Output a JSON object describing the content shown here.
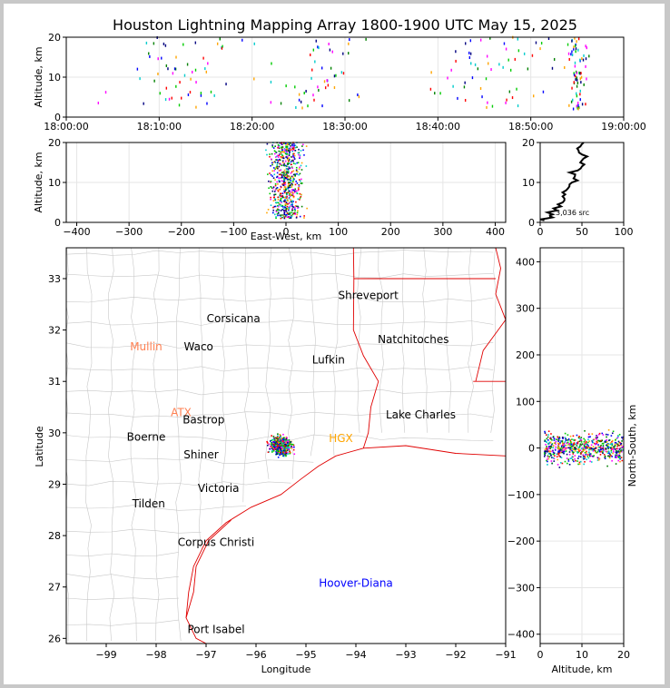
{
  "title": "Houston Lightning Mapping Array 1800-1900 UTC May 15, 2025",
  "colors": {
    "background": "#ffffff",
    "border": "#c8c8c8",
    "county_lines": "#c8c8c8",
    "state_lines": "#e00000",
    "coast": "#e00000",
    "histogram": "#000000",
    "sources": [
      "#0000ff",
      "#00cc00",
      "#ff00ff",
      "#00cccc",
      "#000080",
      "#ffa500",
      "#ff0000",
      "#008000"
    ]
  },
  "chart_data": [
    {
      "id": "time_altitude",
      "type": "scatter",
      "xlabel": "",
      "ylabel": "Altitude, km",
      "x_ticks": [
        "18:00:00",
        "18:10:00",
        "18:20:00",
        "18:30:00",
        "18:40:00",
        "18:50:00",
        "19:00:00"
      ],
      "xlim_minutes_after_1800": [
        0,
        60
      ],
      "ylim": [
        0,
        20
      ],
      "y_ticks": [
        0,
        10,
        20
      ],
      "clusters_minutes_after_1800": [
        {
          "center": 12,
          "spread": 10,
          "count": 60
        },
        {
          "center": 27,
          "spread": 8,
          "count": 50
        },
        {
          "center": 46,
          "spread": 10,
          "count": 60
        },
        {
          "center": 55,
          "spread": 1.5,
          "count": 70
        }
      ],
      "altitude_band_km": [
        2,
        20
      ]
    },
    {
      "id": "east_west_altitude",
      "type": "scatter",
      "xlabel": "East-West, km",
      "ylabel": "Altitude, km",
      "xlim": [
        -420,
        420
      ],
      "x_ticks": [
        -400,
        -300,
        -200,
        -100,
        0,
        100,
        200,
        300,
        400
      ],
      "ylim": [
        0,
        20
      ],
      "y_ticks": [
        0,
        10,
        20
      ],
      "source_cluster": {
        "x_center": 0,
        "x_spread": 30,
        "y_range": [
          1,
          20
        ]
      }
    },
    {
      "id": "altitude_histogram",
      "type": "line",
      "xlim": [
        0,
        100
      ],
      "x_ticks": [
        0,
        50,
        100
      ],
      "ylim": [
        0,
        20
      ],
      "y_ticks": [
        0,
        10,
        20
      ],
      "annotation": "3,036 src",
      "profile_altitude_km": [
        0.5,
        1,
        1.5,
        2,
        3,
        4,
        5,
        6,
        7,
        8,
        9,
        10,
        11,
        12,
        13,
        14,
        15,
        16,
        17,
        18,
        19,
        20
      ],
      "profile_count": [
        5,
        8,
        12,
        15,
        20,
        25,
        27,
        29,
        30,
        31,
        35,
        38,
        40,
        42,
        45,
        50,
        48,
        52,
        50,
        46,
        48,
        52
      ]
    },
    {
      "id": "plan_view",
      "type": "scatter",
      "xlabel": "Longitude",
      "ylabel": "Latitude",
      "xlim": [
        -99.8,
        -91
      ],
      "ylim": [
        25.9,
        33.6
      ],
      "x_ticks": [
        -99,
        -98,
        -97,
        -96,
        -95,
        -94,
        -93,
        -92,
        -91
      ],
      "y_ticks": [
        26,
        27,
        28,
        29,
        30,
        31,
        32,
        33
      ],
      "source_cluster": {
        "lon_center": -95.5,
        "lat_center": 29.75,
        "lon_spread": 0.35,
        "lat_spread": 0.3
      },
      "cities": [
        {
          "name": "Shreveport",
          "lon": -93.75,
          "lat": 32.6,
          "color": "#000000"
        },
        {
          "name": "Corsicana",
          "lon": -96.45,
          "lat": 32.15,
          "color": "#000000"
        },
        {
          "name": "Natchitoches",
          "lon": -92.85,
          "lat": 31.75,
          "color": "#000000"
        },
        {
          "name": "Mullin",
          "lon": -98.2,
          "lat": 31.6,
          "color": "#ff7f50"
        },
        {
          "name": "Waco",
          "lon": -97.15,
          "lat": 31.6,
          "color": "#000000"
        },
        {
          "name": "Lufkin",
          "lon": -94.55,
          "lat": 31.35,
          "color": "#000000"
        },
        {
          "name": "ATX",
          "lon": -97.5,
          "lat": 30.32,
          "color": "#ff7f50"
        },
        {
          "name": "Bastrop",
          "lon": -97.05,
          "lat": 30.18,
          "color": "#000000"
        },
        {
          "name": "Lake Charles",
          "lon": -92.7,
          "lat": 30.28,
          "color": "#000000"
        },
        {
          "name": "Boerne",
          "lon": -98.2,
          "lat": 29.85,
          "color": "#000000"
        },
        {
          "name": "HGX",
          "lon": -94.3,
          "lat": 29.82,
          "color": "#ffa500"
        },
        {
          "name": "Shiner",
          "lon": -97.1,
          "lat": 29.5,
          "color": "#000000"
        },
        {
          "name": "Victoria",
          "lon": -96.75,
          "lat": 28.85,
          "color": "#000000"
        },
        {
          "name": "Tilden",
          "lon": -98.15,
          "lat": 28.55,
          "color": "#000000"
        },
        {
          "name": "Corpus Christi",
          "lon": -96.8,
          "lat": 27.8,
          "color": "#000000"
        },
        {
          "name": "Hoover-Diana",
          "lon": -94.0,
          "lat": 27.0,
          "color": "#0000ff"
        },
        {
          "name": "Port Isabel",
          "lon": -96.8,
          "lat": 26.1,
          "color": "#000000"
        }
      ]
    },
    {
      "id": "altitude_north_south",
      "type": "scatter",
      "xlabel": "Altitude, km",
      "ylabel": "North-South, km",
      "xlim": [
        0,
        20
      ],
      "x_ticks": [
        0,
        10,
        20
      ],
      "ylim": [
        -420,
        430
      ],
      "y_ticks": [
        -400,
        -300,
        -200,
        -100,
        0,
        100,
        200,
        300,
        400
      ],
      "source_cluster": {
        "y_center": 0,
        "y_spread": 30,
        "x_range": [
          1,
          20
        ]
      }
    }
  ]
}
